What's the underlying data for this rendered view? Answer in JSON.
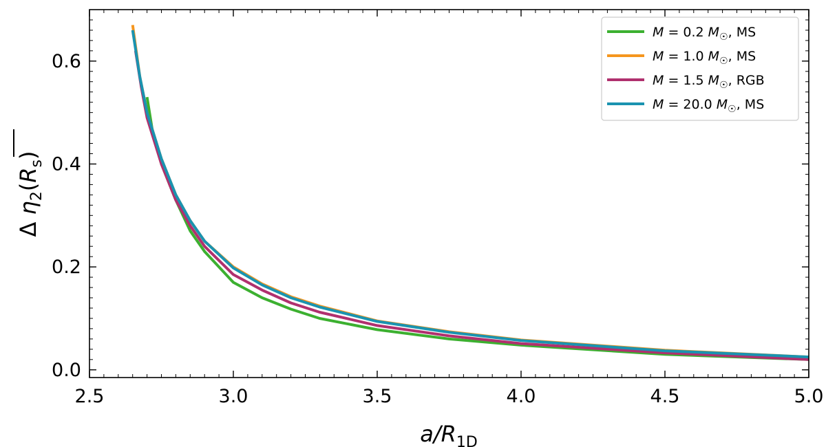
{
  "chart_data": {
    "type": "line",
    "xlabel": "a/R1D",
    "ylabel": "Δ η2(R̄s)",
    "xlim": [
      2.5,
      5.0
    ],
    "ylim": [
      -0.015,
      0.7
    ],
    "x_ticks": [
      "2.5",
      "3.0",
      "3.5",
      "4.0",
      "4.5",
      "5.0"
    ],
    "y_ticks": [
      "0.0",
      "0.2",
      "0.4",
      "0.6"
    ],
    "legend_position": "top-right",
    "series": [
      {
        "name": "M = 0.2 M☉, MS",
        "color": "#3cb030",
        "x": [
          2.7,
          2.72,
          2.75,
          2.8,
          2.85,
          2.9,
          3.0,
          3.1,
          3.2,
          3.3,
          3.5,
          3.75,
          4.0,
          4.5,
          5.0
        ],
        "y": [
          0.53,
          0.46,
          0.4,
          0.33,
          0.27,
          0.23,
          0.17,
          0.14,
          0.118,
          0.1,
          0.078,
          0.06,
          0.048,
          0.03,
          0.02
        ]
      },
      {
        "name": "M = 1.0 M☉, MS",
        "color": "#f5961e",
        "x": [
          2.65,
          2.675,
          2.7,
          2.75,
          2.8,
          2.85,
          2.9,
          3.0,
          3.1,
          3.2,
          3.3,
          3.5,
          3.75,
          4.0,
          4.5,
          5.0
        ],
        "y": [
          0.67,
          0.57,
          0.5,
          0.41,
          0.34,
          0.29,
          0.25,
          0.2,
          0.167,
          0.142,
          0.124,
          0.095,
          0.074,
          0.058,
          0.038,
          0.025
        ]
      },
      {
        "name": "M = 1.5 M☉, RGB",
        "color": "#b0306e",
        "x": [
          2.66,
          2.68,
          2.7,
          2.75,
          2.8,
          2.85,
          2.9,
          3.0,
          3.1,
          3.2,
          3.3,
          3.5,
          3.75,
          4.0,
          4.5,
          5.0
        ],
        "y": [
          0.62,
          0.55,
          0.49,
          0.4,
          0.33,
          0.28,
          0.24,
          0.185,
          0.155,
          0.13,
          0.112,
          0.086,
          0.066,
          0.051,
          0.033,
          0.02
        ]
      },
      {
        "name": "M = 20.0 M☉, MS",
        "color": "#1a93b0",
        "x": [
          2.65,
          2.675,
          2.7,
          2.75,
          2.8,
          2.85,
          2.9,
          3.0,
          3.1,
          3.2,
          3.3,
          3.5,
          3.75,
          4.0,
          4.5,
          5.0
        ],
        "y": [
          0.66,
          0.57,
          0.5,
          0.41,
          0.34,
          0.29,
          0.25,
          0.198,
          0.165,
          0.14,
          0.122,
          0.094,
          0.073,
          0.057,
          0.037,
          0.025
        ]
      }
    ]
  },
  "legend": {
    "items": [
      {
        "prefix": "M",
        "mid": " = 0.2 ",
        "unit": "M",
        "sun": "☉",
        "suffix": ", MS"
      },
      {
        "prefix": "M",
        "mid": " = 1.0 ",
        "unit": "M",
        "sun": "☉",
        "suffix": ", MS"
      },
      {
        "prefix": "M",
        "mid": " = 1.5 ",
        "unit": "M",
        "sun": "☉",
        "suffix": ", RGB"
      },
      {
        "prefix": "M",
        "mid": " = 20.0 ",
        "unit": "M",
        "sun": "☉",
        "suffix": ", MS"
      }
    ]
  },
  "labels": {
    "x_main": "a/R",
    "x_sub": "1D",
    "y_delta": "Δ ",
    "y_eta": "η",
    "y_eta_sub": "2",
    "y_open": "(",
    "y_R": "R",
    "y_R_sub": "s",
    "y_close": ")"
  }
}
